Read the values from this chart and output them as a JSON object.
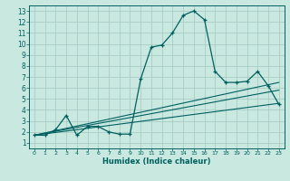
{
  "xlabel": "Humidex (Indice chaleur)",
  "ylabel": "",
  "bg_color": "#c8e8e0",
  "grid_color": "#a8ccc4",
  "line_color": "#006060",
  "xlim": [
    -0.5,
    23.5
  ],
  "ylim": [
    0.5,
    13.5
  ],
  "xticks": [
    0,
    1,
    2,
    3,
    4,
    5,
    6,
    7,
    8,
    9,
    10,
    11,
    12,
    13,
    14,
    15,
    16,
    17,
    18,
    19,
    20,
    21,
    22,
    23
  ],
  "yticks": [
    1,
    2,
    3,
    4,
    5,
    6,
    7,
    8,
    9,
    10,
    11,
    12,
    13
  ],
  "main_curve": [
    [
      0,
      1.7
    ],
    [
      1,
      1.7
    ],
    [
      2,
      2.2
    ],
    [
      3,
      3.5
    ],
    [
      4,
      1.7
    ],
    [
      5,
      2.5
    ],
    [
      6,
      2.5
    ],
    [
      7,
      2.0
    ],
    [
      8,
      1.8
    ],
    [
      9,
      1.8
    ],
    [
      10,
      6.8
    ],
    [
      11,
      9.7
    ],
    [
      12,
      9.9
    ],
    [
      13,
      11.0
    ],
    [
      14,
      12.6
    ],
    [
      15,
      13.0
    ],
    [
      16,
      12.2
    ],
    [
      17,
      7.5
    ],
    [
      18,
      6.5
    ],
    [
      19,
      6.5
    ],
    [
      20,
      6.6
    ],
    [
      21,
      7.5
    ],
    [
      22,
      6.2
    ],
    [
      23,
      4.5
    ]
  ],
  "trend1_x": [
    0,
    23
  ],
  "trend1_y": [
    1.7,
    6.5
  ],
  "trend2_x": [
    0,
    23
  ],
  "trend2_y": [
    1.7,
    5.8
  ],
  "trend3_x": [
    0,
    23
  ],
  "trend3_y": [
    1.7,
    4.6
  ]
}
